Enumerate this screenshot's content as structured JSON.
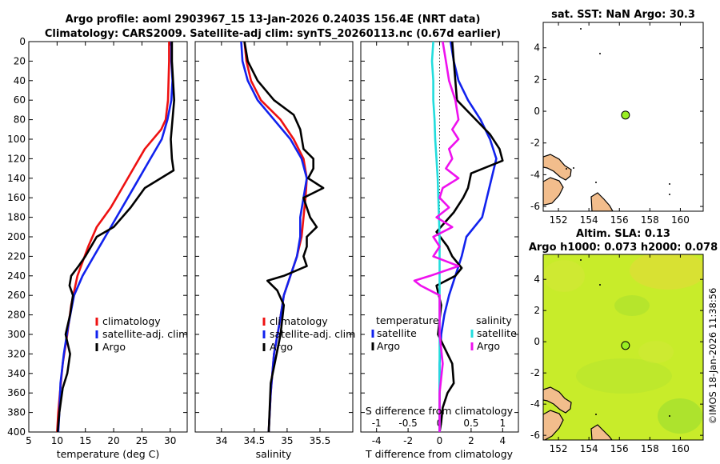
{
  "figure": {
    "title_line1": "Argo profile: aoml 2903967_15 13-Jan-2026 0.2403S 156.4E (NRT data)",
    "title_line2": "Climatology: CARS2009. Satellite-adj clim: synTS_20260113.nc (0.67d earlier)",
    "copyright": "©IMOS 18-Jan-2026 11:38:56"
  },
  "colors": {
    "climatology": "#ee1111",
    "satellite": "#1122ee",
    "argo": "#000000",
    "sal_satellite": "#22dddd",
    "sal_argo": "#ee11ee",
    "land": "#f2bd8c",
    "marker": "#99ee22",
    "sla_field": "#c8ec2a"
  },
  "chart_data": [
    {
      "type": "line",
      "name": "temperature-profile",
      "xlabel": "temperature (deg C)",
      "ylabel": "",
      "xlim": [
        5,
        33
      ],
      "ylim": [
        400,
        0
      ],
      "xticks": [
        5,
        10,
        15,
        20,
        25,
        30
      ],
      "yticks": [
        0,
        20,
        40,
        60,
        80,
        100,
        120,
        140,
        160,
        180,
        200,
        220,
        240,
        260,
        280,
        300,
        320,
        340,
        360,
        380,
        400
      ],
      "legend": [
        "climatology",
        "satellite-adj. clim",
        "Argo"
      ],
      "legend_loc": "lower-right",
      "series": [
        {
          "name": "climatology",
          "x": [
            29.8,
            29.8,
            29.7,
            29.6,
            29.2,
            28.4,
            25.5,
            23.5,
            21.5,
            19.5,
            17.0,
            15.5,
            13.6,
            12.5,
            11.8,
            11.0,
            10.5,
            10.2,
            10.0
          ],
          "y": [
            0,
            20,
            40,
            60,
            80,
            90,
            110,
            130,
            150,
            170,
            190,
            210,
            240,
            270,
            300,
            330,
            360,
            380,
            400
          ]
        },
        {
          "name": "satellite-adj. clim",
          "x": [
            30.2,
            30.2,
            30.4,
            30.2,
            29.5,
            28.5,
            26.5,
            24.5,
            22.5,
            20.5,
            18.5,
            16.5,
            14.5,
            13.0,
            12.0,
            11.2,
            10.6,
            10.4,
            10.2
          ],
          "y": [
            0,
            20,
            40,
            60,
            80,
            100,
            120,
            140,
            160,
            180,
            200,
            220,
            240,
            260,
            290,
            320,
            350,
            380,
            400
          ]
        },
        {
          "name": "Argo",
          "x": [
            30.3,
            30.3,
            30.5,
            30.7,
            30.4,
            30.1,
            30.3,
            30.6,
            25.5,
            23.0,
            20.0,
            17.0,
            16.0,
            15.0,
            13.8,
            12.5,
            12.2,
            12.8,
            12.3,
            11.5,
            12.3,
            11.8,
            11.0,
            10.4,
            10.1
          ],
          "y": [
            0,
            20,
            40,
            60,
            80,
            100,
            120,
            132,
            150,
            170,
            190,
            200,
            210,
            220,
            230,
            240,
            250,
            260,
            280,
            300,
            320,
            340,
            355,
            380,
            400
          ]
        }
      ]
    },
    {
      "type": "line",
      "name": "salinity-profile",
      "xlabel": "salinity",
      "ylabel": "",
      "xlim": [
        33.6,
        36.0
      ],
      "ylim": [
        400,
        0
      ],
      "xticks": [
        34,
        34.5,
        35,
        35.5
      ],
      "legend": [
        "climatology",
        "satellite-adj. clim",
        "Argo"
      ],
      "legend_loc": "lower-right",
      "series": [
        {
          "name": "climatology",
          "x": [
            34.35,
            34.38,
            34.45,
            34.6,
            34.9,
            35.1,
            35.25,
            35.3,
            35.28,
            35.25,
            35.22,
            35.15,
            35.05,
            34.95,
            34.88,
            34.8,
            34.75,
            34.72
          ],
          "y": [
            0,
            20,
            40,
            60,
            80,
            100,
            120,
            140,
            160,
            180,
            200,
            220,
            240,
            260,
            290,
            320,
            360,
            400
          ]
        },
        {
          "name": "satellite-adj. clim",
          "x": [
            34.3,
            34.32,
            34.4,
            34.55,
            34.8,
            35.05,
            35.22,
            35.3,
            35.25,
            35.2,
            35.2,
            35.15,
            35.05,
            34.95,
            34.88,
            34.8,
            34.75,
            34.72
          ],
          "y": [
            0,
            20,
            40,
            60,
            80,
            100,
            120,
            140,
            160,
            180,
            200,
            220,
            240,
            260,
            290,
            320,
            360,
            400
          ]
        },
        {
          "name": "Argo",
          "x": [
            34.35,
            34.4,
            34.55,
            34.8,
            35.1,
            35.2,
            35.25,
            35.4,
            35.4,
            35.32,
            35.55,
            35.25,
            35.3,
            35.35,
            35.45,
            35.3,
            35.3,
            35.25,
            35.3,
            34.95,
            34.7,
            34.85,
            34.95,
            34.9,
            34.75,
            34.72
          ],
          "y": [
            0,
            20,
            40,
            60,
            75,
            90,
            110,
            120,
            130,
            140,
            150,
            160,
            170,
            180,
            190,
            200,
            210,
            220,
            230,
            240,
            245,
            255,
            270,
            300,
            350,
            400
          ]
        }
      ]
    },
    {
      "type": "line",
      "name": "difference-profile",
      "xlabel": "T difference from climatology",
      "xlabel_top": "S difference from climatology",
      "xlim": [
        -5,
        5
      ],
      "xlim_top": [
        -1.25,
        1.25
      ],
      "ylim": [
        400,
        0
      ],
      "xticks": [
        -4,
        -2,
        0,
        2,
        4
      ],
      "xticks_top": [
        -1,
        -0.5,
        0,
        0.5,
        1
      ],
      "legend_temperature_title": "temperature",
      "legend_salinity_title": "salinity",
      "legend_temperature": [
        "satellite",
        "Argo"
      ],
      "legend_salinity": [
        "satellite",
        "Argo"
      ],
      "series": [
        {
          "name": "temperature satellite",
          "axis": "T",
          "x": [
            0.7,
            0.9,
            1.2,
            1.8,
            2.6,
            3.2,
            3.6,
            3.3,
            3.0,
            2.7,
            1.7,
            1.4,
            1.0,
            0.6,
            0.3,
            0.1,
            0.0,
            0.0,
            0.0
          ],
          "y": [
            0,
            20,
            40,
            60,
            80,
            100,
            120,
            140,
            160,
            180,
            200,
            220,
            240,
            260,
            280,
            300,
            330,
            360,
            400
          ]
        },
        {
          "name": "temperature Argo",
          "axis": "T",
          "x": [
            0.8,
            0.9,
            1.0,
            1.1,
            2.0,
            3.2,
            3.8,
            4.0,
            2.0,
            1.8,
            1.5,
            0.9,
            -0.2,
            0.5,
            0.8,
            1.4,
            1.0,
            -0.2,
            0.1,
            -0.1,
            0.8,
            0.9,
            0.5,
            0.2,
            0.1,
            0.0
          ],
          "y": [
            0,
            20,
            40,
            60,
            75,
            95,
            110,
            122,
            135,
            150,
            160,
            175,
            195,
            210,
            220,
            232,
            240,
            250,
            270,
            300,
            330,
            350,
            360,
            375,
            390,
            400
          ]
        },
        {
          "name": "salinity satellite",
          "axis": "S",
          "x": [
            -0.1,
            -0.12,
            -0.1,
            -0.1,
            -0.08,
            -0.07,
            -0.05,
            -0.03,
            -0.02,
            -0.01,
            0.0,
            0.0,
            0.0,
            0.0,
            0.0,
            0.0,
            0.0,
            0.0
          ],
          "y": [
            0,
            20,
            40,
            60,
            80,
            100,
            120,
            140,
            160,
            180,
            200,
            220,
            240,
            260,
            300,
            340,
            370,
            400
          ]
        },
        {
          "name": "salinity Argo",
          "axis": "S",
          "x": [
            0.05,
            0.1,
            0.15,
            0.25,
            0.3,
            0.2,
            0.3,
            0.15,
            0.2,
            0.1,
            0.3,
            0.05,
            0.0,
            0.15,
            -0.05,
            0.2,
            -0.1,
            0.0,
            -0.1,
            0.3,
            -0.15,
            -0.4,
            -0.3,
            0.0,
            0.0,
            0.05,
            0.0,
            0.0,
            0.0
          ],
          "y": [
            0,
            20,
            40,
            60,
            80,
            90,
            100,
            110,
            120,
            130,
            140,
            150,
            160,
            170,
            180,
            190,
            200,
            210,
            220,
            230,
            240,
            245,
            250,
            260,
            300,
            330,
            360,
            380,
            400
          ]
        }
      ]
    },
    {
      "type": "scatter",
      "name": "sst-map",
      "title": "sat. SST: NaN Argo: 30.3",
      "xlim": [
        151,
        161.5
      ],
      "ylim": [
        -6.3,
        5.6
      ],
      "xticks": [
        152,
        154,
        156,
        158,
        160
      ],
      "yticks": [
        -6,
        -4,
        -2,
        0,
        2,
        4
      ],
      "marker": {
        "lon": 156.4,
        "lat": -0.24
      }
    },
    {
      "type": "heatmap",
      "name": "sla-map",
      "title_line1": "Altim. SLA: 0.13",
      "title_line2": "Argo h1000: 0.073 h2000: 0.078",
      "xlim": [
        151,
        161.5
      ],
      "ylim": [
        -6.3,
        5.6
      ],
      "xticks": [
        152,
        154,
        156,
        158,
        160
      ],
      "yticks": [
        -6,
        -4,
        -2,
        0,
        2,
        4
      ],
      "marker": {
        "lon": 156.4,
        "lat": -0.24
      }
    }
  ]
}
